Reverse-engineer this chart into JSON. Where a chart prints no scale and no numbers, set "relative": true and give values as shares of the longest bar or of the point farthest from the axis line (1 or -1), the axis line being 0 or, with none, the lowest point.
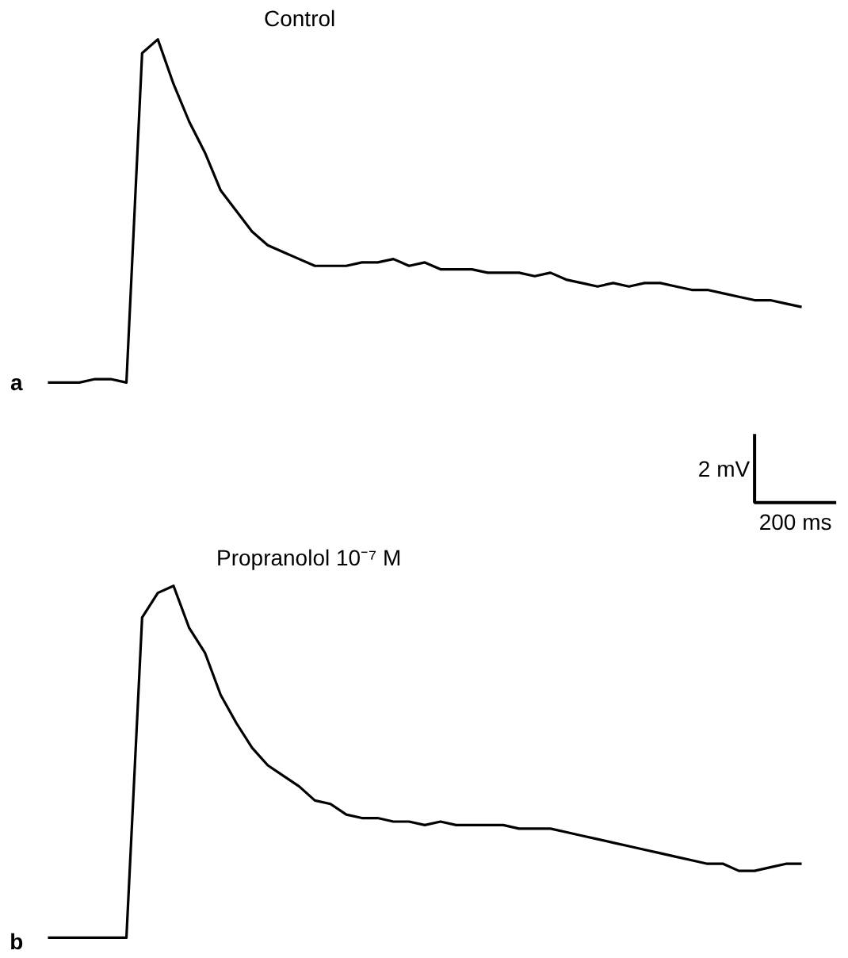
{
  "chart_data": [
    {
      "type": "line",
      "title": "Control",
      "relative": true,
      "color": "#000000",
      "annotations": [
        "a",
        "2 mV",
        "200 ms"
      ],
      "grid": false,
      "categories": [
        null,
        null,
        null,
        null,
        null,
        null,
        null,
        null,
        null,
        null,
        null,
        null,
        null,
        null,
        null,
        null,
        null,
        null,
        null,
        null,
        null,
        null,
        null,
        null,
        null,
        null,
        null,
        null,
        null,
        null,
        null,
        null,
        null,
        null,
        null,
        null,
        null,
        null,
        null,
        null,
        null,
        null,
        null,
        null,
        null,
        null,
        null,
        null,
        null
      ],
      "values": [
        0,
        0,
        0,
        0.01,
        0.01,
        0,
        0.96,
        1.0,
        0.87,
        0.76,
        0.67,
        0.56,
        0.5,
        0.44,
        0.4,
        0.38,
        0.36,
        0.34,
        0.34,
        0.34,
        0.35,
        0.35,
        0.36,
        0.34,
        0.35,
        0.33,
        0.33,
        0.33,
        0.32,
        0.32,
        0.32,
        0.31,
        0.32,
        0.3,
        0.29,
        0.28,
        0.29,
        0.28,
        0.29,
        0.29,
        0.28,
        0.27,
        0.27,
        0.26,
        0.25,
        0.24,
        0.24,
        0.23,
        0.22
      ]
    },
    {
      "type": "line",
      "title": "Propranolol 10⁻⁷ M",
      "relative": true,
      "color": "#000000",
      "annotations": [
        "b"
      ],
      "grid": false,
      "categories": [
        null,
        null,
        null,
        null,
        null,
        null,
        null,
        null,
        null,
        null,
        null,
        null,
        null,
        null,
        null,
        null,
        null,
        null,
        null,
        null,
        null,
        null,
        null,
        null,
        null,
        null,
        null,
        null,
        null,
        null,
        null,
        null,
        null,
        null,
        null,
        null,
        null,
        null,
        null,
        null,
        null,
        null,
        null,
        null,
        null,
        null,
        null,
        null,
        null
      ],
      "values": [
        0,
        0,
        0,
        0,
        0,
        0,
        0.91,
        0.98,
        1.0,
        0.88,
        0.81,
        0.69,
        0.61,
        0.54,
        0.49,
        0.46,
        0.43,
        0.39,
        0.38,
        0.35,
        0.34,
        0.34,
        0.33,
        0.33,
        0.32,
        0.33,
        0.32,
        0.32,
        0.32,
        0.32,
        0.31,
        0.31,
        0.31,
        0.3,
        0.29,
        0.28,
        0.27,
        0.26,
        0.25,
        0.24,
        0.23,
        0.22,
        0.21,
        0.21,
        0.19,
        0.19,
        0.2,
        0.21,
        0.21
      ]
    }
  ]
}
